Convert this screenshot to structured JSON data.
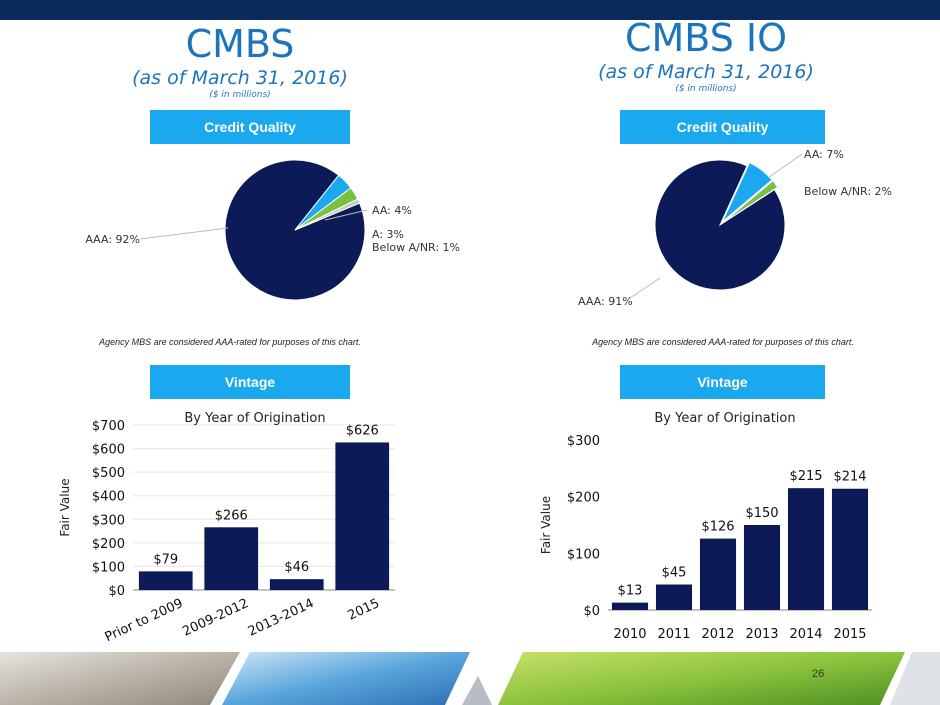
{
  "left": {
    "title": "CMBS",
    "subtitle": "(as of March 31, 2016)",
    "units": "($ in millions)",
    "credit_header": "Credit Quality",
    "footnote": "Agency MBS are considered AAA-rated for purposes of this chart.",
    "vintage_header": "Vintage"
  },
  "right": {
    "title": "CMBS IO",
    "subtitle": "(as of March 31, 2016)",
    "units": "($ in millions)",
    "credit_header": "Credit Quality",
    "footnote": "Agency MBS are considered AAA-rated for purposes of this chart.",
    "vintage_header": "Vintage"
  },
  "page_number": "26",
  "colors": {
    "navy": "#0c1a57",
    "blue": "#1aa8ee",
    "green": "#7ac143",
    "gray": "#c8c8c8"
  },
  "chart_data": [
    {
      "type": "pie",
      "labels": [
        "AAA: 92%",
        "AA: 4%",
        "A: 3%",
        "Below A/NR: 1%"
      ],
      "values": [
        92,
        4,
        3,
        1
      ],
      "colors": [
        "#0c1a57",
        "#1aa8ee",
        "#7ac143",
        "#c8c8c8"
      ]
    },
    {
      "type": "pie",
      "labels": [
        "AAA: 91%",
        "AA: 7%",
        "Below A/NR: 2%"
      ],
      "values": [
        91,
        7,
        2
      ],
      "colors": [
        "#0c1a57",
        "#1aa8ee",
        "#7ac143"
      ]
    },
    {
      "type": "bar",
      "title": "By Year of Origination",
      "ylabel": "Fair Value",
      "categories": [
        "Prior to 2009",
        "2009-2012",
        "2013-2014",
        "2015"
      ],
      "values": [
        79,
        266,
        46,
        626
      ],
      "value_labels": [
        "$79",
        "$266",
        "$46",
        "$626"
      ],
      "ylim": [
        0,
        700
      ],
      "ytick_labels": [
        "$0",
        "$100",
        "$200",
        "$300",
        "$400",
        "$500",
        "$600",
        "$700"
      ]
    },
    {
      "type": "bar",
      "title": "By Year of Origination",
      "ylabel": "Fair Value",
      "categories": [
        "2010",
        "2011",
        "2012",
        "2013",
        "2014",
        "2015"
      ],
      "values": [
        13,
        45,
        126,
        150,
        215,
        214
      ],
      "value_labels": [
        "$13",
        "$45",
        "$126",
        "$150",
        "$215",
        "$214"
      ],
      "ylim": [
        0,
        300
      ],
      "ytick_labels": [
        "$0",
        "$100",
        "$200",
        "$300"
      ]
    }
  ]
}
